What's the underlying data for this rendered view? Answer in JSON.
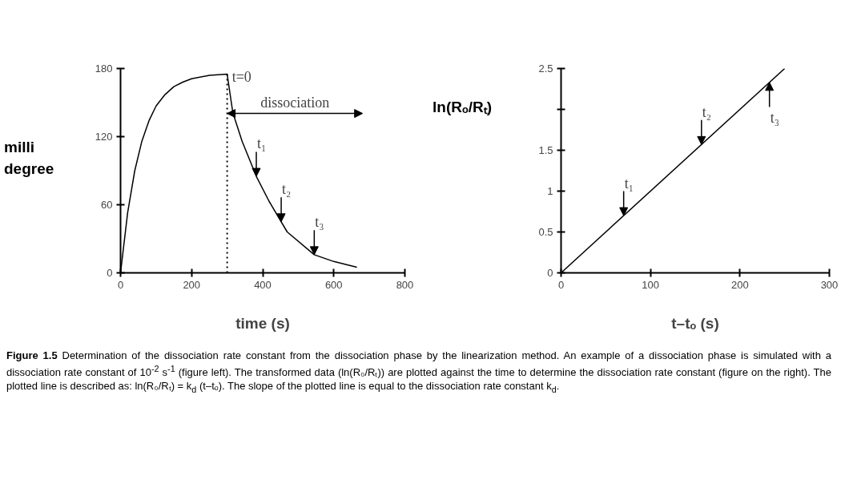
{
  "chart_data": [
    {
      "type": "line",
      "xlabel": "time (s)",
      "ylabel": "milli degree",
      "x": [
        0,
        20,
        40,
        60,
        80,
        100,
        125,
        150,
        175,
        200,
        250,
        300,
        316,
        342,
        382,
        418,
        469,
        545,
        600,
        665
      ],
      "series": [
        {
          "color": "#000000",
          "values": [
            0,
            53,
            90,
            116,
            134,
            147,
            157,
            164,
            168,
            171,
            174,
            175,
            141,
            116,
            85,
            63,
            36,
            16,
            10,
            5
          ]
        }
      ],
      "xlim": [
        0,
        800
      ],
      "xticks": [
        0,
        200,
        400,
        600,
        800
      ],
      "ylim": [
        0,
        180
      ],
      "yticks": [
        0,
        60,
        120,
        180
      ],
      "grid": false,
      "line_style": "solid",
      "ref_lines": [
        {
          "axis": "x",
          "value": 300,
          "line_style": "dotted",
          "color": "#000000"
        }
      ],
      "annotations": [
        {
          "text": "t=0",
          "x": 300,
          "y": 175
        },
        "dissociation",
        {
          "text": "t₁",
          "x": 382,
          "y": 85
        },
        {
          "text": "t₂",
          "x": 452,
          "y": 45
        },
        {
          "text": "t₃",
          "x": 545,
          "y": 16
        }
      ]
    },
    {
      "type": "line",
      "xlabel": "t–tₒ (s)",
      "ylabel": "ln(Rₒ/Rₜ)",
      "x": [
        0,
        250
      ],
      "series": [
        {
          "color": "#000000",
          "values": [
            0,
            2.5
          ]
        }
      ],
      "xlim": [
        0,
        300
      ],
      "xticks": [
        0,
        100,
        200,
        300
      ],
      "ylim": [
        0,
        2.5
      ],
      "yticks": [
        0,
        0.5,
        1,
        1.5,
        {
          "value": 2,
          "label": null
        },
        2.5
      ],
      "grid": false,
      "line_style": "solid",
      "annotations": [
        {
          "text": "t₁",
          "x": 70,
          "y": 0.7
        },
        {
          "text": "t₂",
          "x": 157,
          "y": 1.57
        },
        {
          "text": "t₃",
          "x": 233,
          "y": 2.33
        }
      ]
    },
    {
      "type": "other",
      "annotations": [
        "Figure 1.5",
        "Determination of the dissociation rate constant from the dissociation phase by the linearization method. An example of a dissociation phase is simulated with a dissociation rate constant of 10$^{-2}$ s$^{-1}$ (figure left). The transformed data (ln(R₀/Rₜ)) are plotted against the time to determine the dissociation rate constant (figure on the right). The plotted line is described as: ln(R₀/Rₜ) = k$_{d}$ (t–tₒ). The slope of the plotted line is equal to the dissociation rate constant k$_{d}$."
      ]
    }
  ]
}
